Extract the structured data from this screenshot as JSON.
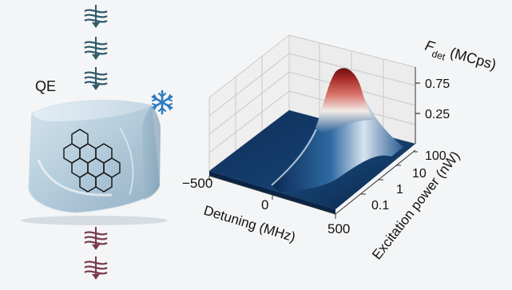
{
  "left_panel": {
    "emitter_label": "QE",
    "cold_icon": "snowflake-icon",
    "incoming_pulse_color": "#2e5a6b",
    "outgoing_pulse_color": "#7a3a4a",
    "crystal_color": "#a9c4d6",
    "molecule_icon": "polycyclic-aromatic-molecule-icon"
  },
  "chart_data": {
    "type": "surface3d",
    "title": "",
    "zlabel_main": "F",
    "zlabel_sub": "det",
    "zlabel_rest": " (MCps)",
    "xlabel": "Detuning (MHz)",
    "ylabel": "Excitation power (nW)",
    "x_ticks": [
      "−500",
      "0",
      "500"
    ],
    "x_tick_values": [
      -500,
      0,
      500
    ],
    "y_ticks": [
      "0.1",
      "1",
      "10",
      "100"
    ],
    "y_tick_values": [
      0.1,
      1,
      10,
      100
    ],
    "y_scale": "log",
    "z_ticks": [
      "0.25",
      "0.75"
    ],
    "z_tick_values": [
      0.25,
      0.75
    ],
    "xlim": [
      -500,
      500
    ],
    "ylim": [
      0.03,
      300
    ],
    "zlim": [
      0,
      1.0
    ],
    "peak_value": 0.98,
    "grid": true,
    "colormap": [
      "#0b2a55",
      "#1f5a94",
      "#f2ece8",
      "#c0392b",
      "#6a0f12"
    ]
  }
}
